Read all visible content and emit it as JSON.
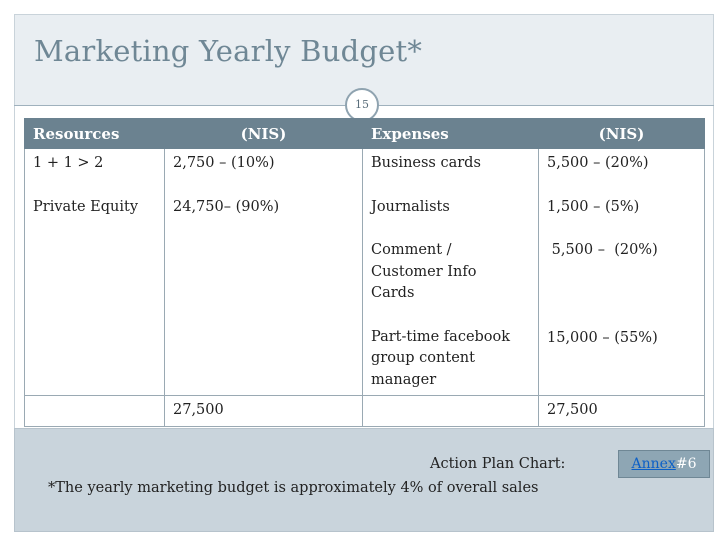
{
  "slide": {
    "title": "Marketing Yearly Budget*",
    "page_number": "15"
  },
  "table": {
    "headers": [
      "Resources",
      "(NIS)",
      "Expenses",
      "(NIS)"
    ],
    "body": {
      "resources": [
        "1 + 1 > 2",
        "Private Equity"
      ],
      "resource_amounts": [
        "2,750 – (10%)",
        "24,750– (90%)"
      ],
      "expenses": [
        [
          "Business cards"
        ],
        [
          "Journalists"
        ],
        [
          "Comment /",
          "Customer Info",
          "Cards"
        ],
        [
          "Part-time facebook",
          "group content",
          "manager"
        ]
      ],
      "expense_amounts": [
        "5,500 – (20%)",
        "1,500 – (5%)",
        " 5,500 –  (20%)",
        "15,000 – (55%)"
      ]
    },
    "totals": [
      "",
      "27,500",
      "",
      "27,500"
    ]
  },
  "footer": {
    "chart_label": "Action Plan Chart:",
    "note": "*The yearly marketing budget is approximately 4% of overall sales",
    "annex_link": "Annex",
    "annex_number": "#6"
  }
}
